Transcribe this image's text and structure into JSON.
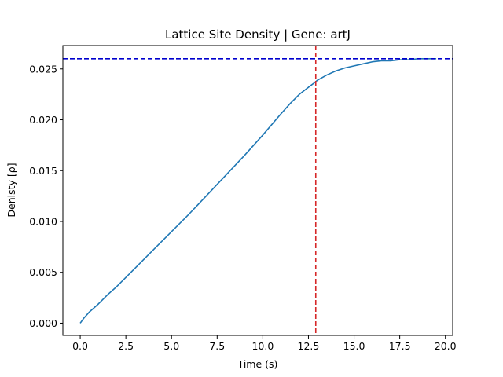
{
  "chart_data": {
    "type": "line",
    "title": "Lattice Site Density | Gene: artJ",
    "xlabel": "Time (s)",
    "ylabel": "Denisty [ρ]",
    "xlim": [
      -0.95,
      20.4
    ],
    "ylim": [
      -0.0012,
      0.0273
    ],
    "xticks": [
      0.0,
      2.5,
      5.0,
      7.5,
      10.0,
      12.5,
      15.0,
      17.5,
      20.0
    ],
    "xtick_labels": [
      "0.0",
      "2.5",
      "5.0",
      "7.5",
      "10.0",
      "12.5",
      "15.0",
      "17.5",
      "20.0"
    ],
    "yticks": [
      0.0,
      0.005,
      0.01,
      0.015,
      0.02,
      0.025
    ],
    "ytick_labels": [
      "0.000",
      "0.005",
      "0.010",
      "0.015",
      "0.020",
      "0.025"
    ],
    "grid": false,
    "series": [
      {
        "color": "#1f77b4",
        "x": [
          0,
          0.2,
          0.5,
          1,
          1.5,
          2,
          2.5,
          3,
          4,
          5,
          6,
          7,
          8,
          9,
          10,
          11,
          11.5,
          12,
          12.5,
          12.8,
          13,
          13.5,
          14,
          14.5,
          15,
          15.5,
          16,
          16.5,
          17,
          17.5,
          18,
          18.5,
          19,
          19.5
        ],
        "y": [
          0,
          0.0005,
          0.0011,
          0.0019,
          0.0028,
          0.0036,
          0.0045,
          0.0054,
          0.0072,
          0.009,
          0.0108,
          0.0127,
          0.0146,
          0.0165,
          0.0185,
          0.0206,
          0.0216,
          0.0225,
          0.0232,
          0.0236,
          0.0239,
          0.0244,
          0.0248,
          0.0251,
          0.0253,
          0.0255,
          0.0257,
          0.0258,
          0.0258,
          0.0259,
          0.0259,
          0.026,
          0.026,
          0.026
        ]
      }
    ],
    "hlines": [
      {
        "y": 0.026,
        "color": "#0000cd",
        "style": "dashed"
      }
    ],
    "vlines": [
      {
        "x": 12.9,
        "color": "#d62728",
        "style": "dashed"
      }
    ]
  }
}
